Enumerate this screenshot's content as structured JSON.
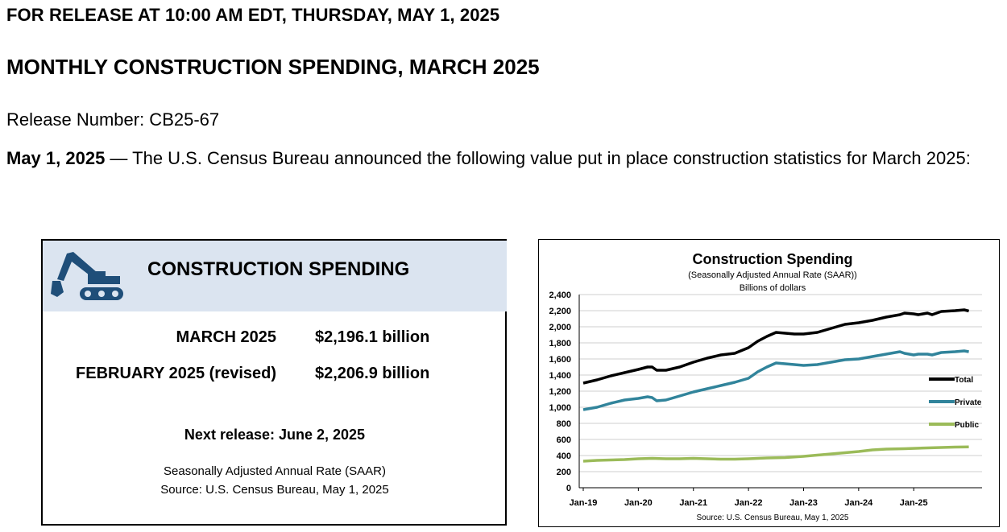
{
  "header": {
    "release_line": "FOR RELEASE AT 10:00 AM EDT, THURSDAY, MAY 1, 2025",
    "title": "MONTHLY CONSTRUCTION SPENDING, MARCH 2025",
    "release_number": "Release Number: CB25-67",
    "announce_date": "May 1, 2025",
    "announce_text": " — The U.S. Census Bureau announced the following value put in place construction statistics for March 2025:"
  },
  "summary": {
    "title": "CONSTRUCTION SPENDING",
    "icon": "excavator-icon",
    "header_bg": "#dbe4f0",
    "icon_color": "#1f4e79",
    "rows": [
      {
        "label": "MARCH 2025",
        "value": "$2,196.1 billion"
      },
      {
        "label": "FEBRUARY 2025 (revised)",
        "value": "$2,206.9 billion"
      }
    ],
    "next_release": "Next release: June 2, 2025",
    "saar_note": "Seasonally Adjusted Annual Rate (SAAR)",
    "source": "Source: U.S. Census Bureau, May 1, 2025"
  },
  "chart_data": {
    "type": "line",
    "title": "Construction  Spending",
    "subtitle": "(Seasonally Adjusted Annual Rate (SAAR))",
    "ylabel": "Billions of dollars",
    "source": "Source: U.S. Census Bureau, May 1, 2025",
    "ylim": [
      0,
      2400
    ],
    "yticks": [
      "0",
      "200",
      "400",
      "600",
      "800",
      "1,000",
      "1,200",
      "1,400",
      "1,600",
      "1,800",
      "2,000",
      "2,200",
      "2,400"
    ],
    "xticks": [
      "Jan-19",
      "Jan-20",
      "Jan-21",
      "Jan-22",
      "Jan-23",
      "Jan-24",
      "Jan-25"
    ],
    "grid": true,
    "legend_position": "right",
    "series": [
      {
        "name": "Total",
        "color": "#000000",
        "points": [
          [
            0,
            1300
          ],
          [
            3,
            1340
          ],
          [
            6,
            1390
          ],
          [
            9,
            1430
          ],
          [
            12,
            1470
          ],
          [
            14,
            1500
          ],
          [
            15,
            1500
          ],
          [
            16,
            1460
          ],
          [
            18,
            1460
          ],
          [
            21,
            1500
          ],
          [
            24,
            1560
          ],
          [
            27,
            1610
          ],
          [
            30,
            1650
          ],
          [
            33,
            1670
          ],
          [
            36,
            1740
          ],
          [
            38,
            1820
          ],
          [
            40,
            1880
          ],
          [
            42,
            1930
          ],
          [
            44,
            1920
          ],
          [
            46,
            1910
          ],
          [
            48,
            1910
          ],
          [
            51,
            1930
          ],
          [
            54,
            1980
          ],
          [
            57,
            2030
          ],
          [
            60,
            2050
          ],
          [
            63,
            2080
          ],
          [
            66,
            2120
          ],
          [
            69,
            2150
          ],
          [
            70,
            2170
          ],
          [
            72,
            2160
          ],
          [
            73,
            2150
          ],
          [
            75,
            2170
          ],
          [
            76,
            2150
          ],
          [
            78,
            2190
          ],
          [
            81,
            2200
          ],
          [
            83,
            2210
          ],
          [
            84,
            2196
          ]
        ]
      },
      {
        "name": "Private",
        "color": "#31849b",
        "points": [
          [
            0,
            970
          ],
          [
            3,
            1000
          ],
          [
            6,
            1050
          ],
          [
            9,
            1090
          ],
          [
            12,
            1110
          ],
          [
            14,
            1130
          ],
          [
            15,
            1120
          ],
          [
            16,
            1080
          ],
          [
            18,
            1090
          ],
          [
            21,
            1140
          ],
          [
            24,
            1190
          ],
          [
            27,
            1230
          ],
          [
            30,
            1270
          ],
          [
            33,
            1310
          ],
          [
            36,
            1360
          ],
          [
            38,
            1440
          ],
          [
            40,
            1500
          ],
          [
            42,
            1550
          ],
          [
            44,
            1540
          ],
          [
            46,
            1530
          ],
          [
            48,
            1520
          ],
          [
            51,
            1530
          ],
          [
            54,
            1560
          ],
          [
            57,
            1590
          ],
          [
            60,
            1600
          ],
          [
            63,
            1630
          ],
          [
            66,
            1660
          ],
          [
            68,
            1680
          ],
          [
            69,
            1690
          ],
          [
            70,
            1670
          ],
          [
            72,
            1650
          ],
          [
            73,
            1660
          ],
          [
            75,
            1660
          ],
          [
            76,
            1650
          ],
          [
            78,
            1680
          ],
          [
            81,
            1690
          ],
          [
            83,
            1700
          ],
          [
            84,
            1690
          ]
        ]
      },
      {
        "name": "Public",
        "color": "#9bbb59",
        "points": [
          [
            0,
            330
          ],
          [
            3,
            340
          ],
          [
            6,
            345
          ],
          [
            9,
            350
          ],
          [
            12,
            360
          ],
          [
            15,
            365
          ],
          [
            18,
            360
          ],
          [
            21,
            360
          ],
          [
            24,
            365
          ],
          [
            27,
            360
          ],
          [
            30,
            355
          ],
          [
            33,
            355
          ],
          [
            36,
            360
          ],
          [
            40,
            370
          ],
          [
            44,
            375
          ],
          [
            48,
            390
          ],
          [
            52,
            410
          ],
          [
            56,
            430
          ],
          [
            60,
            450
          ],
          [
            63,
            470
          ],
          [
            66,
            480
          ],
          [
            70,
            485
          ],
          [
            75,
            495
          ],
          [
            78,
            500
          ],
          [
            81,
            505
          ],
          [
            84,
            507
          ]
        ]
      }
    ]
  }
}
